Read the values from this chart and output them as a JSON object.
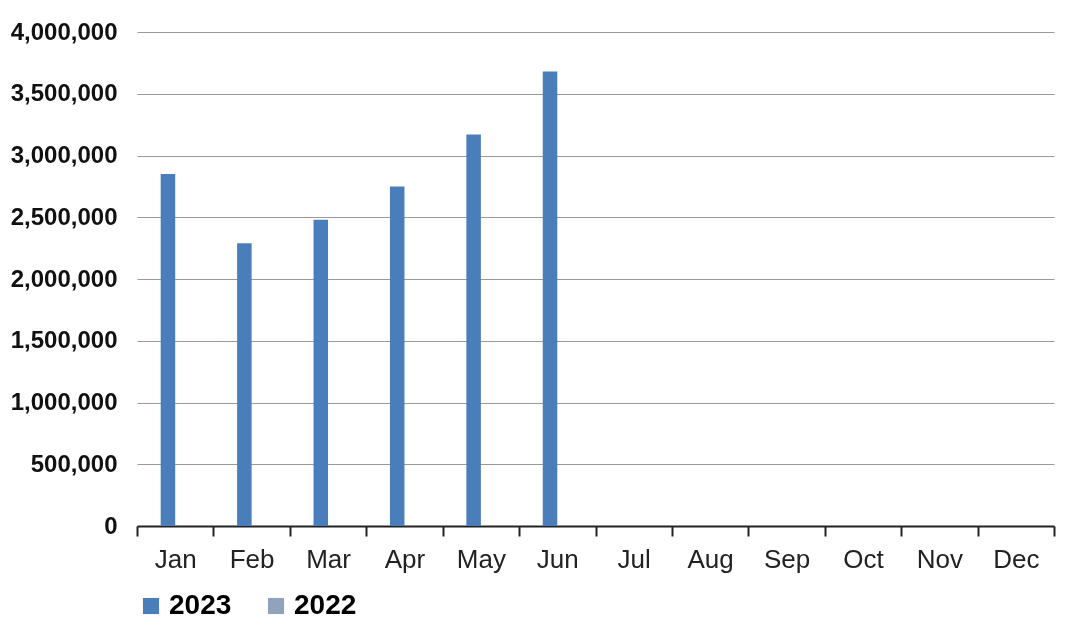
{
  "chart_data": {
    "type": "bar",
    "categories": [
      "Jan",
      "Feb",
      "Mar",
      "Apr",
      "May",
      "Jun",
      "Jul",
      "Aug",
      "Sep",
      "Oct",
      "Nov",
      "Dec"
    ],
    "series": [
      {
        "name": "2023",
        "color": "#4a7ebb",
        "values": [
          2850000,
          2290000,
          2480000,
          2750000,
          3170000,
          3680000,
          null,
          null,
          null,
          null,
          null,
          null
        ]
      },
      {
        "name": "2022",
        "color": "#8fa3bd",
        "values": [
          null,
          null,
          null,
          null,
          null,
          null,
          null,
          null,
          null,
          null,
          null,
          null
        ]
      }
    ],
    "ylim": [
      0,
      4000000
    ],
    "yticks": [
      0,
      {
        "value": 500000,
        "label": "500,000"
      },
      {
        "value": 1000000,
        "label": "1,000,000"
      },
      {
        "value": 1500000,
        "label": "1,500,000"
      },
      {
        "value": 2000000,
        "label": "2,000,000"
      },
      {
        "value": 2500000,
        "label": "2,500,000"
      },
      {
        "value": 3000000,
        "label": "3,000,000"
      },
      {
        "value": 3500000,
        "label": "3,500,000"
      },
      {
        "value": 4000000,
        "label": "4,000,000"
      }
    ],
    "grid": "y",
    "legend": "bottom"
  }
}
